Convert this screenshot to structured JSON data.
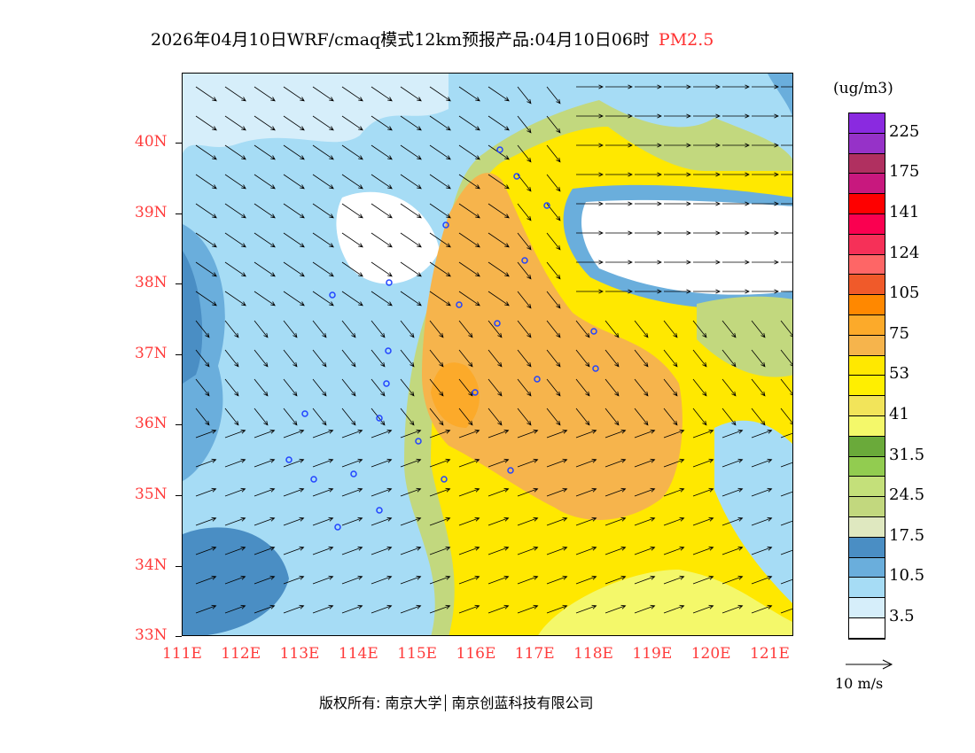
{
  "title": {
    "main": "2026年04月10日WRF/cmaq模式12km预报产品:04月10日06时",
    "species": "PM2.5",
    "species_color": "#ff3030"
  },
  "axes": {
    "lat_labels": [
      "40N",
      "39N",
      "38N",
      "37N",
      "36N",
      "35N",
      "34N",
      "33N"
    ],
    "lon_labels": [
      "111E",
      "112E",
      "113E",
      "114E",
      "115E",
      "116E",
      "117E",
      "118E",
      "119E",
      "120E",
      "121E"
    ]
  },
  "legend": {
    "unit": "(ug/m3)",
    "colors": [
      "#8a2ae0",
      "#9632c8",
      "#b03060",
      "#c8187e",
      "#fe0000",
      "#fa0050",
      "#f63058",
      "#fe6666",
      "#f05a2a",
      "#ff8800",
      "#fcaa2a",
      "#f6b44c",
      "#ffe800",
      "#ffef00",
      "#f2e45a",
      "#f4f86a",
      "#6aaa3a",
      "#92cc50",
      "#c4e07a",
      "#c2d87e",
      "#dfe8c0",
      "#4a8ec4",
      "#6aaedc",
      "#a6dcf5",
      "#d6eefa",
      "#ffffff"
    ],
    "labels": [
      "225",
      "175",
      "141",
      "124",
      "105",
      "75",
      "53",
      "41",
      "31.5",
      "24.5",
      "17.5",
      "10.5",
      "3.5"
    ]
  },
  "wind_reference": "10  m/s",
  "copyright": {
    "prefix": "版权所有: 南京大学",
    "org": "南京创蓝科技有限公司"
  }
}
